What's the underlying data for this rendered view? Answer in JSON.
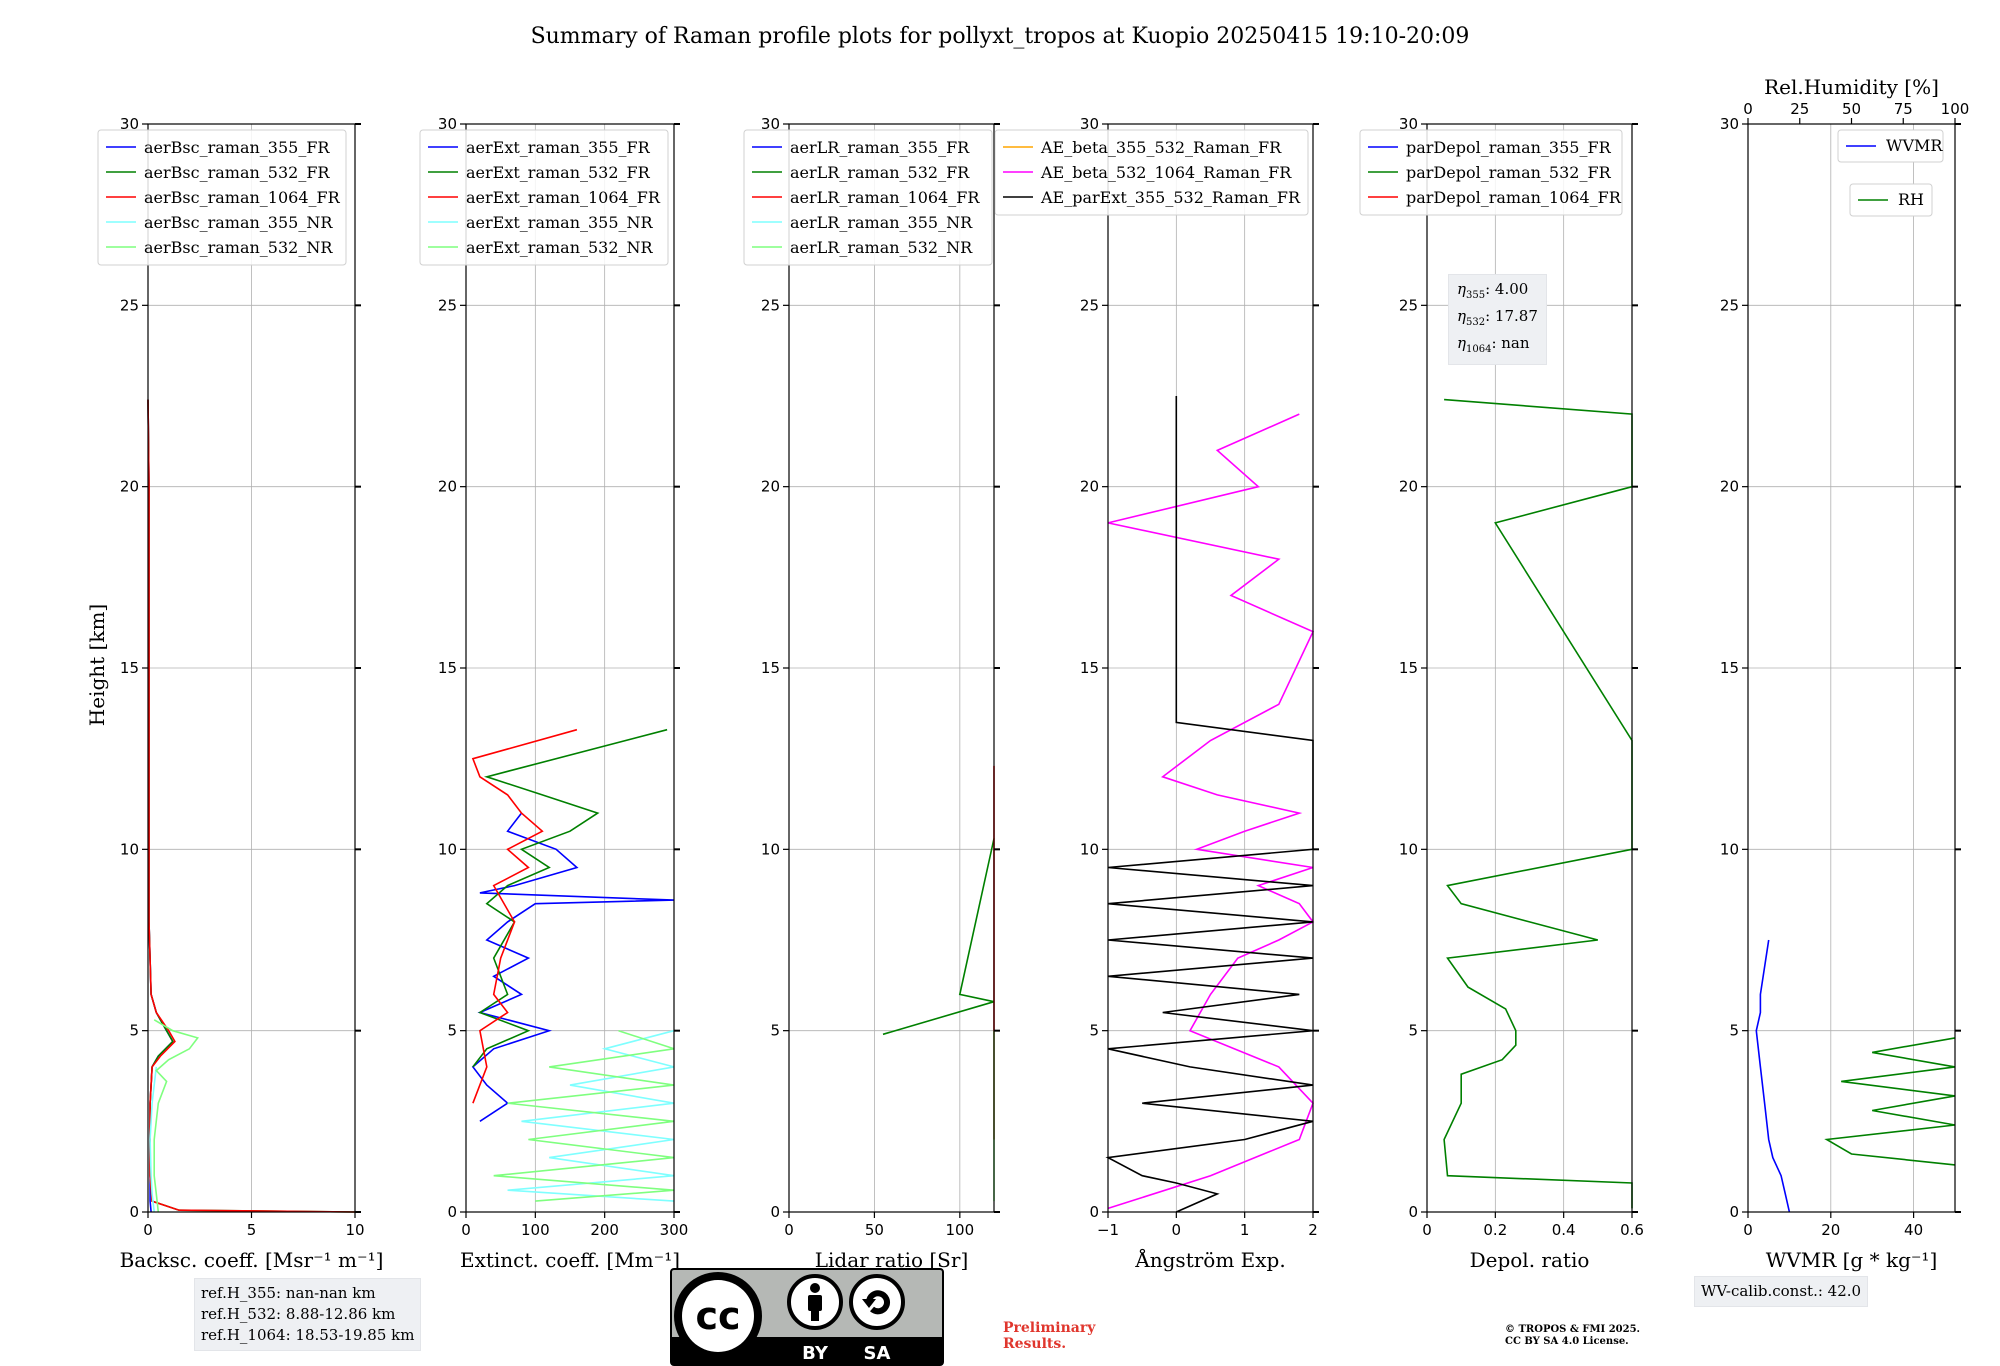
{
  "title": "Summary of Raman profile plots for pollyxt_tropos at Kuopio 20250415 19:10-20:09",
  "ylabel": "Height [km]",
  "ref_heights": [
    "ref.H_355: nan-nan km",
    "ref.H_532: 8.88-12.86 km",
    "ref.H_1064: 18.53-19.85 km"
  ],
  "eta_labels": [
    {
      "sub": "355",
      "val": ": 4.00"
    },
    {
      "sub": "532",
      "val": ": 17.87"
    },
    {
      "sub": "1064",
      "val": ": nan"
    }
  ],
  "wv_calib": "WV-calib.const.: 42.0",
  "copyright": [
    "© TROPOS & FMI 2025.",
    "CC BY SA 4.0 License."
  ],
  "preliminary": [
    "Preliminary",
    "Results."
  ],
  "license_badge": {
    "by": "BY",
    "sa": "SA",
    "cc": "cc"
  },
  "colors": {
    "blue": "#0000ff",
    "green": "#008000",
    "red": "#ff0000",
    "cyan": "#7fffff",
    "lightgreen": "#7fff7f",
    "orange": "#ffa500",
    "magenta": "#ff00ff",
    "black": "#000000",
    "grid": "#b0b0b0",
    "prelim": "#e0362d"
  },
  "chart_data": [
    {
      "type": "line",
      "xlabel": "Backsc. coeff. [Msr⁻¹ m⁻¹]",
      "xlim": [
        0,
        10
      ],
      "ylim": [
        0,
        30
      ],
      "xticks": [
        0,
        5,
        10
      ],
      "yticks": [
        0,
        5,
        10,
        15,
        20,
        25,
        30
      ],
      "grid": true,
      "legend": "top-left",
      "series": [
        {
          "name": "aerBsc_raman_355_FR",
          "color": "#0000ff",
          "y": [
            0,
            0.3,
            1,
            2,
            3,
            4,
            4.3,
            4.7,
            5,
            5.5,
            6,
            8,
            12,
            16,
            20,
            22.4
          ],
          "x": [
            0.15,
            0.1,
            0.1,
            0.1,
            0.1,
            0.2,
            0.5,
            1.2,
            0.9,
            0.4,
            0.15,
            0.05,
            0.05,
            0.05,
            0.05,
            0
          ]
        },
        {
          "name": "aerBsc_raman_532_FR",
          "color": "#008000",
          "y": [
            0,
            0.05,
            0.3,
            1,
            2,
            3,
            4,
            4.3,
            4.7,
            5,
            5.5,
            6,
            8,
            12,
            16,
            20,
            22.4
          ],
          "x": [
            10,
            1.5,
            0.2,
            0.1,
            0.1,
            0.1,
            0.2,
            0.5,
            1.2,
            0.9,
            0.4,
            0.15,
            0.05,
            0.05,
            0.05,
            0.05,
            0
          ]
        },
        {
          "name": "aerBsc_raman_1064_FR",
          "color": "#ff0000",
          "y": [
            0,
            0.05,
            0.3,
            1,
            2,
            3,
            4,
            4.3,
            4.7,
            5,
            5.5,
            6,
            8,
            12,
            16,
            20,
            22.4
          ],
          "x": [
            10,
            1.5,
            0.2,
            0.1,
            0.1,
            0.1,
            0.2,
            0.6,
            1.3,
            1.0,
            0.4,
            0.15,
            0.05,
            0.05,
            0.05,
            0.05,
            0
          ]
        },
        {
          "name": "aerBsc_raman_355_NR",
          "color": "#7fffff",
          "y": [
            0,
            0.5,
            1,
            2,
            3,
            4
          ],
          "x": [
            0.3,
            0.2,
            0.15,
            0.1,
            0.2,
            0.4
          ]
        },
        {
          "name": "aerBsc_raman_532_NR",
          "color": "#7fff7f",
          "y": [
            0,
            0.5,
            1,
            2,
            3,
            3.6,
            3.9,
            4.2,
            4.5,
            4.8,
            5.0,
            5.3
          ],
          "x": [
            0.5,
            0.4,
            0.3,
            0.3,
            0.5,
            0.9,
            0.4,
            1.0,
            2.0,
            2.4,
            1.2,
            0.3
          ]
        }
      ]
    },
    {
      "type": "line",
      "xlabel": "Extinct. coeff. [Mm⁻¹]",
      "xlim": [
        0,
        300
      ],
      "ylim": [
        0,
        30
      ],
      "xticks": [
        0,
        100,
        200,
        300
      ],
      "yticks": [
        0,
        5,
        10,
        15,
        20,
        25,
        30
      ],
      "grid": true,
      "legend": "top-left",
      "series": [
        {
          "name": "aerExt_raman_355_FR",
          "color": "#0000ff",
          "y": [
            2.5,
            3,
            3.5,
            4,
            4.5,
            5,
            5.5,
            6,
            6.5,
            7,
            7.5,
            8,
            8.5,
            8.6,
            8.8,
            9,
            9.5,
            10,
            10.5,
            11
          ],
          "x": [
            20,
            60,
            30,
            10,
            40,
            120,
            20,
            80,
            40,
            90,
            30,
            60,
            100,
            300,
            20,
            70,
            160,
            130,
            60,
            80
          ]
        },
        {
          "name": "aerExt_raman_532_FR",
          "color": "#008000",
          "y": [
            4,
            4.5,
            5,
            5.5,
            6,
            7,
            8,
            8.5,
            9,
            9.5,
            10,
            10.5,
            11,
            11.5,
            12,
            13.3
          ],
          "x": [
            10,
            30,
            90,
            20,
            60,
            40,
            70,
            30,
            60,
            120,
            80,
            150,
            190,
            110,
            30,
            290
          ]
        },
        {
          "name": "aerExt_raman_1064_FR",
          "color": "#ff0000",
          "y": [
            3,
            4,
            5,
            5.5,
            6,
            7,
            8,
            9,
            9.5,
            10,
            10.5,
            11,
            11.5,
            12,
            12.5,
            13.3
          ],
          "x": [
            10,
            30,
            20,
            60,
            40,
            50,
            70,
            40,
            90,
            60,
            110,
            80,
            60,
            20,
            10,
            160
          ]
        },
        {
          "name": "aerExt_raman_355_NR",
          "color": "#7fffff",
          "y": [
            0.3,
            0.6,
            1,
            1.5,
            2,
            2.5,
            3,
            3.5,
            4,
            4.5,
            5
          ],
          "x": [
            300,
            60,
            300,
            120,
            300,
            80,
            300,
            150,
            300,
            200,
            300
          ]
        },
        {
          "name": "aerExt_raman_532_NR",
          "color": "#7fff7f",
          "y": [
            0.3,
            0.6,
            1,
            1.5,
            2,
            2.5,
            3,
            3.5,
            4,
            4.5,
            5
          ],
          "x": [
            100,
            300,
            40,
            300,
            90,
            300,
            60,
            300,
            120,
            300,
            220
          ]
        }
      ]
    },
    {
      "type": "line",
      "xlabel": "Lidar ratio [Sr]",
      "xlim": [
        0,
        120
      ],
      "ylim": [
        0,
        30
      ],
      "xticks": [
        0,
        50,
        100
      ],
      "yticks": [
        0,
        5,
        10,
        15,
        20,
        25,
        30
      ],
      "grid": true,
      "legend": "top-left",
      "series": [
        {
          "name": "aerLR_raman_355_FR",
          "color": "#0000ff",
          "y": [],
          "x": []
        },
        {
          "name": "aerLR_raman_532_FR",
          "color": "#008000",
          "y": [
            4.9,
            5.8,
            6.0,
            10.3
          ],
          "x": [
            55,
            120,
            100,
            120
          ]
        },
        {
          "name": "aerLR_raman_1064_FR",
          "color": "#ff0000",
          "y": [
            2,
            2.2,
            3,
            3.4,
            3.8,
            4,
            4.2,
            5.3,
            5.7,
            6.2,
            6.5,
            7,
            7.3,
            7.6,
            8,
            8.2,
            8.6,
            9,
            9.3,
            9.6,
            10.1,
            10.8,
            11.2,
            11.6,
            11.9,
            12.3
          ],
          "x": [
            120,
            120,
            120,
            120,
            120,
            120,
            120,
            120,
            120,
            120,
            120,
            120,
            120,
            120,
            120,
            120,
            120,
            120,
            120,
            120,
            120,
            120,
            120,
            120,
            120,
            120
          ]
        },
        {
          "name": "aerLR_raman_355_NR",
          "color": "#7fffff",
          "y": [],
          "x": []
        },
        {
          "name": "aerLR_raman_532_NR",
          "color": "#7fff7f",
          "y": [
            0.3,
            0.6,
            1,
            1.4,
            1.8,
            2.2,
            2.6,
            3,
            3.4,
            3.8,
            4.2,
            4.6,
            5
          ],
          "x": [
            120,
            120,
            120,
            120,
            120,
            120,
            120,
            120,
            120,
            120,
            120,
            120,
            120
          ]
        }
      ]
    },
    {
      "type": "line",
      "xlabel": "Ångström Exp.",
      "xlim": [
        -1,
        2
      ],
      "ylim": [
        0,
        30
      ],
      "xticks": [
        -1,
        0,
        1,
        2
      ],
      "yticks": [
        0,
        5,
        10,
        15,
        20,
        25,
        30
      ],
      "grid": true,
      "legend": "top-left",
      "series": [
        {
          "name": "AE_beta_355_532_Raman_FR",
          "color": "#ffa500",
          "y": [],
          "x": []
        },
        {
          "name": "AE_beta_532_1064_Raman_FR",
          "color": "#ff00ff",
          "y": [
            0.1,
            1,
            2,
            3,
            4,
            5,
            6,
            7,
            7.5,
            8,
            8.5,
            9,
            9.5,
            10,
            10.5,
            11,
            11.5,
            12,
            13,
            14,
            16,
            17,
            18,
            19,
            20,
            21,
            22
          ],
          "x": [
            -1,
            0.5,
            1.8,
            2,
            1.5,
            0.2,
            0.5,
            0.9,
            1.5,
            2,
            1.8,
            1.2,
            2,
            0.3,
            1,
            1.8,
            0.6,
            -0.2,
            0.5,
            1.5,
            2,
            0.8,
            1.5,
            -1,
            1.2,
            0.6,
            1.8
          ]
        },
        {
          "name": "AE_parExt_355_532_Raman_FR",
          "color": "#000000",
          "y": [
            0,
            0.5,
            0.8,
            1,
            1.5,
            2,
            2.5,
            3,
            3.5,
            4,
            4.5,
            5,
            5.5,
            6,
            6.5,
            7,
            7.5,
            8,
            8.5,
            9,
            9.5,
            10,
            11,
            12,
            13,
            13.5,
            22.5
          ],
          "x": [
            0,
            0.6,
            0,
            -0.5,
            -1,
            1,
            2,
            -0.5,
            2,
            0.2,
            -1,
            2,
            -0.2,
            1.8,
            -1,
            2,
            -1,
            2,
            -1,
            2,
            -1,
            2,
            2,
            2,
            2,
            0,
            0
          ]
        }
      ]
    },
    {
      "type": "line",
      "xlabel": "Depol. ratio",
      "xlim": [
        0,
        0.6
      ],
      "ylim": [
        0,
        30
      ],
      "xticks": [
        0,
        0.2,
        0.4,
        0.6
      ],
      "yticks": [
        0,
        5,
        10,
        15,
        20,
        25,
        30
      ],
      "grid": true,
      "legend": "top-left",
      "series": [
        {
          "name": "parDepol_raman_355_FR",
          "color": "#0000ff",
          "y": [],
          "x": []
        },
        {
          "name": "parDepol_raman_532_FR",
          "color": "#008000",
          "y": [
            0.1,
            0.8,
            1,
            2,
            3,
            3.8,
            4.2,
            4.6,
            5,
            5.6,
            6.2,
            7,
            7.5,
            8,
            8.5,
            9,
            10,
            10.5,
            12,
            13,
            19,
            20,
            21,
            22,
            22.4
          ],
          "x": [
            0.6,
            0.6,
            0.06,
            0.05,
            0.1,
            0.1,
            0.22,
            0.26,
            0.26,
            0.23,
            0.12,
            0.06,
            0.5,
            0.3,
            0.1,
            0.06,
            0.6,
            0.6,
            0.6,
            0.6,
            0.2,
            0.6,
            0.6,
            0.6,
            0.05
          ]
        },
        {
          "name": "parDepol_raman_1064_FR",
          "color": "#ff0000",
          "y": [],
          "x": []
        }
      ]
    },
    {
      "type": "line",
      "xlabel": "WVMR [g * kg⁻¹]",
      "xlim": [
        0,
        50
      ],
      "ylim": [
        0,
        30
      ],
      "xticks": [
        0,
        20,
        40
      ],
      "yticks": [
        0,
        5,
        10,
        15,
        20,
        25,
        30
      ],
      "grid": true,
      "legend": "top-right",
      "top_axis": {
        "label": "Rel.Humidity [%]",
        "lim": [
          0,
          100
        ],
        "ticks": [
          0,
          25,
          50,
          75,
          100
        ]
      },
      "series": [
        {
          "name": "WVMR",
          "color": "#0000ff",
          "y": [
            0,
            0.5,
            1,
            1.5,
            2,
            3,
            4,
            5,
            5.5,
            6,
            7.5
          ],
          "x": [
            10,
            9,
            8,
            6,
            5,
            4,
            3,
            2,
            3,
            3,
            5
          ]
        },
        {
          "name": "RH",
          "color": "#008000",
          "rh": true,
          "y": [
            1.3,
            1.6,
            2,
            2.4,
            2.8,
            3.2,
            3.6,
            4,
            4.4,
            4.8
          ],
          "x": [
            100,
            50,
            38,
            100,
            60,
            100,
            45,
            100,
            60,
            100
          ]
        }
      ]
    }
  ]
}
